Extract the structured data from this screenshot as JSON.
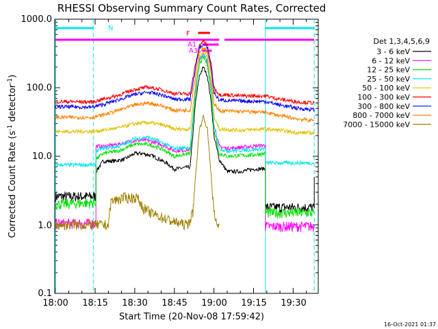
{
  "chart_data": {
    "type": "line",
    "title": "RHESSI Observing Summary Count Rates, Corrected",
    "xlabel": "Start Time (20-Nov-08 17:59:42)",
    "ylabel_main": "Corrected Count Rate (s",
    "ylabel_sup1": "-1",
    "ylabel_mid": " detector",
    "ylabel_sup2": "-1",
    "ylabel_end": ")",
    "yscale": "log",
    "xlim": [
      "17:59:42",
      "19:39:30"
    ],
    "ylim": [
      0.1,
      1000
    ],
    "x_ticks": [
      "18:00",
      "18:15",
      "18:30",
      "18:45",
      "19:00",
      "19:15",
      "19:30"
    ],
    "x_tick_minutes": [
      0,
      15,
      30,
      45,
      60,
      75,
      90
    ],
    "y_ticks": [
      "1000.0",
      "100.0",
      "10.0",
      "1.0",
      "0.1"
    ],
    "y_tick_values": [
      1000,
      100,
      10,
      1,
      0.1
    ],
    "legend_title": "Det 1,3,4,5,6,9",
    "legend_position": "right",
    "series": [
      {
        "name": "3 - 6 keV",
        "color": "#000000",
        "points": [
          [
            0,
            2.6
          ],
          [
            14,
            2.6
          ],
          [
            15.3,
            2.6
          ],
          [
            15.3,
            6
          ],
          [
            18,
            8.5
          ],
          [
            22,
            8.5
          ],
          [
            26,
            9
          ],
          [
            30,
            11
          ],
          [
            33,
            11
          ],
          [
            37,
            10
          ],
          [
            42,
            8
          ],
          [
            45,
            6.5
          ],
          [
            49,
            6.8
          ],
          [
            51,
            7
          ],
          [
            53,
            60
          ],
          [
            54.5,
            150
          ],
          [
            56,
            200
          ],
          [
            57.5,
            150
          ],
          [
            59,
            60
          ],
          [
            60,
            20
          ],
          [
            62,
            9
          ],
          [
            65,
            6
          ],
          [
            70,
            6
          ],
          [
            75,
            6.5
          ],
          [
            79.5,
            6.6
          ],
          [
            79.5,
            1.8
          ],
          [
            85,
            1.8
          ],
          [
            92,
            1.8
          ],
          [
            96,
            1.8
          ],
          [
            98,
            1.8
          ],
          [
            98,
            5
          ]
        ]
      },
      {
        "name": "6 - 12 keV",
        "color": "#ff00ff",
        "points": [
          [
            0,
            1.05
          ],
          [
            14,
            1.05
          ],
          [
            15.3,
            1.05
          ],
          [
            15.3,
            14
          ],
          [
            18,
            14
          ],
          [
            24,
            15
          ],
          [
            30,
            17
          ],
          [
            35,
            17
          ],
          [
            40,
            15
          ],
          [
            45,
            12
          ],
          [
            51,
            12.5
          ],
          [
            53,
            90
          ],
          [
            54.5,
            250
          ],
          [
            56,
            320
          ],
          [
            57.5,
            250
          ],
          [
            59,
            90
          ],
          [
            60,
            30
          ],
          [
            62,
            14
          ],
          [
            65,
            13
          ],
          [
            75,
            14
          ],
          [
            79.5,
            14.5
          ],
          [
            79.5,
            0.95
          ],
          [
            92,
            0.95
          ],
          [
            98,
            0.95
          ]
        ]
      },
      {
        "name": "12 - 25 keV",
        "color": "#00e000",
        "points": [
          [
            0,
            2
          ],
          [
            14,
            2.1
          ],
          [
            15.3,
            2.1
          ],
          [
            15.3,
            9
          ],
          [
            18,
            11
          ],
          [
            24,
            12
          ],
          [
            30,
            15
          ],
          [
            35,
            15
          ],
          [
            40,
            13
          ],
          [
            45,
            10
          ],
          [
            51,
            11
          ],
          [
            53,
            80
          ],
          [
            54.5,
            220
          ],
          [
            56,
            280
          ],
          [
            57.5,
            220
          ],
          [
            59,
            80
          ],
          [
            60,
            25
          ],
          [
            62,
            11
          ],
          [
            65,
            10
          ],
          [
            75,
            10.5
          ],
          [
            79.5,
            11
          ],
          [
            79.5,
            1.5
          ],
          [
            85,
            1.5
          ],
          [
            92,
            1.5
          ],
          [
            98,
            1.5
          ]
        ]
      },
      {
        "name": "25 - 50 keV",
        "color": "#00e8e8",
        "points": [
          [
            0,
            7.5
          ],
          [
            14,
            7.5
          ],
          [
            15.3,
            7.5
          ],
          [
            15.3,
            12
          ],
          [
            18,
            13
          ],
          [
            24,
            14
          ],
          [
            30,
            18
          ],
          [
            35,
            19
          ],
          [
            40,
            16
          ],
          [
            45,
            13
          ],
          [
            51,
            13.5
          ],
          [
            53,
            90
          ],
          [
            54.5,
            250
          ],
          [
            56,
            310
          ],
          [
            57.5,
            250
          ],
          [
            59,
            90
          ],
          [
            60,
            28
          ],
          [
            62,
            13
          ],
          [
            65,
            12
          ],
          [
            75,
            12.5
          ],
          [
            79.5,
            13
          ],
          [
            79.5,
            8
          ],
          [
            85,
            8
          ],
          [
            92,
            8
          ],
          [
            98,
            8
          ]
        ]
      },
      {
        "name": "50 - 100 keV",
        "color": "#e0c000",
        "points": [
          [
            0,
            23
          ],
          [
            14,
            23
          ],
          [
            18,
            24
          ],
          [
            24,
            26
          ],
          [
            30,
            30
          ],
          [
            35,
            31
          ],
          [
            40,
            29
          ],
          [
            45,
            25
          ],
          [
            51,
            25
          ],
          [
            53,
            110
          ],
          [
            54.5,
            280
          ],
          [
            56,
            340
          ],
          [
            57.5,
            280
          ],
          [
            59,
            110
          ],
          [
            60,
            40
          ],
          [
            62,
            25
          ],
          [
            70,
            24
          ],
          [
            79.5,
            25
          ],
          [
            85,
            24
          ],
          [
            92,
            22
          ],
          [
            98,
            22
          ]
        ]
      },
      {
        "name": "100 - 300 keV",
        "color": "#ff0000",
        "points": [
          [
            0,
            63
          ],
          [
            14,
            62
          ],
          [
            18,
            68
          ],
          [
            24,
            78
          ],
          [
            30,
            95
          ],
          [
            35,
            102
          ],
          [
            40,
            94
          ],
          [
            45,
            82
          ],
          [
            51,
            82
          ],
          [
            53,
            220
          ],
          [
            54.5,
            420
          ],
          [
            56,
            480
          ],
          [
            57.5,
            420
          ],
          [
            59,
            220
          ],
          [
            60,
            100
          ],
          [
            62,
            80
          ],
          [
            70,
            76
          ],
          [
            79.5,
            76
          ],
          [
            85,
            68
          ],
          [
            92,
            62
          ],
          [
            98,
            60
          ]
        ]
      },
      {
        "name": "300 - 800 keV",
        "color": "#0000ff",
        "points": [
          [
            0,
            53
          ],
          [
            14,
            52
          ],
          [
            18,
            57
          ],
          [
            24,
            67
          ],
          [
            30,
            80
          ],
          [
            35,
            86
          ],
          [
            40,
            79
          ],
          [
            45,
            68
          ],
          [
            51,
            68
          ],
          [
            53,
            190
          ],
          [
            54.5,
            380
          ],
          [
            56,
            430
          ],
          [
            57.5,
            380
          ],
          [
            59,
            190
          ],
          [
            60,
            85
          ],
          [
            62,
            66
          ],
          [
            70,
            64
          ],
          [
            79.5,
            63
          ],
          [
            85,
            56
          ],
          [
            92,
            50
          ],
          [
            98,
            48
          ]
        ]
      },
      {
        "name": "800 - 7000 keV",
        "color": "#ff8000",
        "points": [
          [
            0,
            37
          ],
          [
            14,
            37
          ],
          [
            18,
            40
          ],
          [
            24,
            47
          ],
          [
            30,
            56
          ],
          [
            35,
            60
          ],
          [
            40,
            55
          ],
          [
            45,
            47
          ],
          [
            51,
            47
          ],
          [
            53,
            150
          ],
          [
            54.5,
            330
          ],
          [
            56,
            390
          ],
          [
            57.5,
            330
          ],
          [
            59,
            150
          ],
          [
            60,
            60
          ],
          [
            62,
            46
          ],
          [
            70,
            45
          ],
          [
            79.5,
            44
          ],
          [
            85,
            39
          ],
          [
            92,
            35
          ],
          [
            98,
            33
          ]
        ]
      },
      {
        "name": "7000 - 15000 keV",
        "color": "#a08000",
        "points": [
          [
            0,
            1
          ],
          [
            15.3,
            1
          ],
          [
            17,
            1
          ],
          [
            20,
            1
          ],
          [
            21,
            2.2
          ],
          [
            26,
            2.5
          ],
          [
            31,
            2.5
          ],
          [
            33,
            1.8
          ],
          [
            36,
            1.5
          ],
          [
            40,
            1.3
          ],
          [
            45,
            1.1
          ],
          [
            50,
            1.0
          ],
          [
            52,
            1.5
          ],
          [
            53,
            5
          ],
          [
            54.5,
            25
          ],
          [
            56,
            38
          ],
          [
            57.5,
            25
          ],
          [
            59,
            5
          ],
          [
            60,
            1.5
          ],
          [
            61,
            1.0
          ],
          [
            62,
            1.0
          ]
        ]
      }
    ],
    "annotations": {
      "N_label": "N",
      "F_label": "F",
      "A1_label": "A1",
      "A3_label": "A3",
      "N_segments": [
        [
          0,
          14.3
        ],
        [
          79.5,
          98
        ]
      ],
      "magenta_bar": [
        [
          0,
          62
        ],
        [
          64,
          98
        ]
      ],
      "F_bar": [
        54,
        58.5
      ],
      "A1_bar": [
        55.8,
        61.8
      ],
      "A3_bar": [
        55.5,
        59.2
      ],
      "vlines_dashed": [
        14.3,
        98
      ],
      "vlines_solid": [
        0,
        79.5
      ]
    },
    "timestamp": "16-Oct-2021 01:37"
  }
}
